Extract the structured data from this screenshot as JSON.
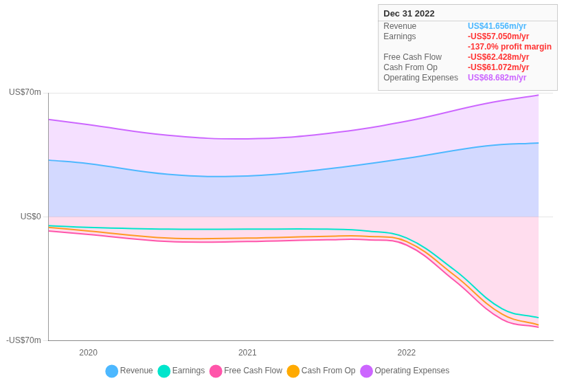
{
  "chart_data": {
    "type": "line",
    "xlim": [
      2019.75,
      2022.92
    ],
    "xticks": [
      2020,
      2021,
      2022
    ],
    "ylim": [
      -70,
      70
    ],
    "yticks": [
      {
        "value": -70,
        "label": "-US$70m"
      },
      {
        "value": 0,
        "label": "US$0"
      },
      {
        "value": 70,
        "label": "US$70m"
      }
    ],
    "grid": "y",
    "legend": "bottom",
    "series": [
      {
        "name": "Revenue",
        "color": "#4db8ff",
        "type": "area",
        "x": [
          2019.75,
          2020.0,
          2020.5,
          2021.0,
          2021.5,
          2022.0,
          2022.5,
          2022.83
        ],
        "values": [
          32,
          30,
          24,
          23,
          27,
          33,
          40,
          41.7
        ]
      },
      {
        "name": "Earnings",
        "color": "#00e5cc",
        "type": "line",
        "x": [
          2019.75,
          2020.0,
          2020.5,
          2021.0,
          2021.5,
          2021.75,
          2022.0,
          2022.3,
          2022.6,
          2022.83
        ],
        "values": [
          -5,
          -6,
          -7,
          -7,
          -7,
          -8,
          -12,
          -30,
          -52,
          -57.0
        ]
      },
      {
        "name": "Free Cash Flow",
        "color": "#ff55aa",
        "type": "area",
        "x": [
          2019.75,
          2020.0,
          2020.5,
          2021.0,
          2021.5,
          2021.75,
          2022.0,
          2022.3,
          2022.6,
          2022.83
        ],
        "values": [
          -8,
          -10,
          -14,
          -14,
          -13,
          -13,
          -16,
          -36,
          -58,
          -62.4
        ]
      },
      {
        "name": "Cash From Op",
        "color": "#ffaa00",
        "type": "line",
        "x": [
          2019.75,
          2020.0,
          2020.5,
          2021.0,
          2021.5,
          2021.75,
          2022.0,
          2022.3,
          2022.6,
          2022.83
        ],
        "values": [
          -6,
          -8,
          -12,
          -12,
          -11,
          -11,
          -14,
          -33,
          -55,
          -61.1
        ]
      },
      {
        "name": "Operating Expenses",
        "color": "#cc66ff",
        "type": "area",
        "x": [
          2019.75,
          2020.0,
          2020.5,
          2021.0,
          2021.5,
          2022.0,
          2022.5,
          2022.83
        ],
        "values": [
          55,
          52,
          46,
          44,
          47,
          54,
          64,
          68.7
        ]
      }
    ],
    "annotations": [
      {
        "text": "Dec 31 2022"
      },
      {
        "label": "Revenue",
        "text": "US$41.656m/yr",
        "color": "#4db8ff"
      },
      {
        "label": "Earnings",
        "text": "-US$57.050m/yr",
        "color": "#ff3333"
      },
      {
        "text": "-137.0% profit margin",
        "color": "#ff3333"
      },
      {
        "label": "Free Cash Flow",
        "text": "-US$62.428m/yr",
        "color": "#ff3333"
      },
      {
        "label": "Cash From Op",
        "text": "-US$61.072m/yr",
        "color": "#ff3333"
      },
      {
        "label": "Operating Expenses",
        "text": "US$68.682m/yr",
        "color": "#cc66ff"
      }
    ]
  }
}
